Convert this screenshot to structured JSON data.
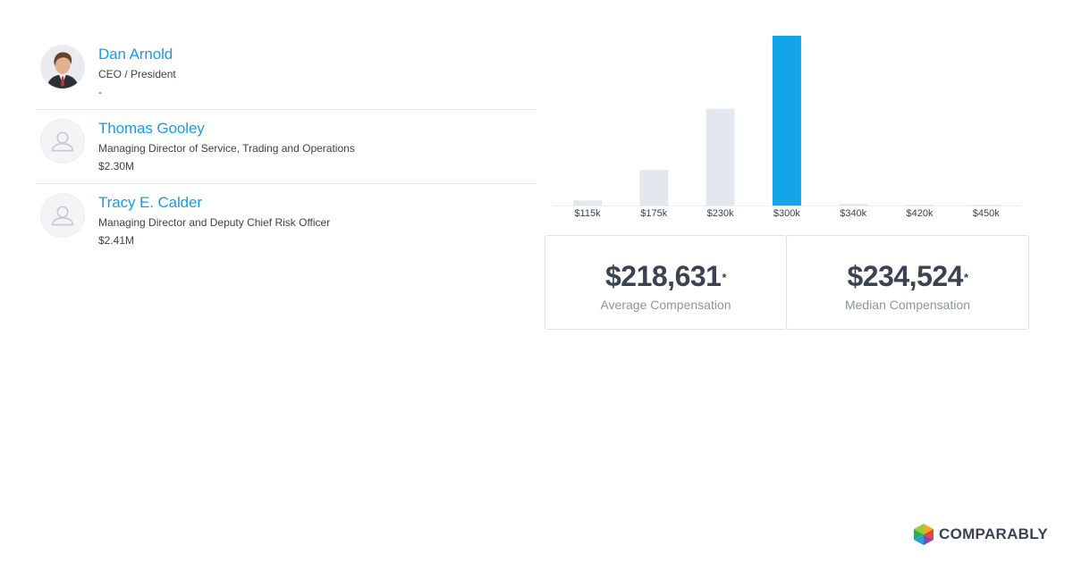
{
  "executives": [
    {
      "name": "Dan Arnold",
      "title": "CEO / President",
      "pay": "-",
      "has_photo": true
    },
    {
      "name": "Thomas Gooley",
      "title": "Managing Director of Service, Trading and Operations",
      "pay": "$2.30M",
      "has_photo": false
    },
    {
      "name": "Tracy E. Calder",
      "title": "Managing Director and Deputy Chief Risk Officer",
      "pay": "$2.41M",
      "has_photo": false
    }
  ],
  "chart_data": {
    "type": "bar",
    "categories": [
      "$115k",
      "$175k",
      "$230k",
      "$300k",
      "$340k",
      "$420k",
      "$450k"
    ],
    "values": [
      3,
      21,
      57,
      100,
      1,
      0.5,
      0.5
    ],
    "highlight_index": 3,
    "ylim": [
      0,
      100
    ],
    "title": "",
    "xlabel": "",
    "ylabel": "",
    "grid": false,
    "bar_color": "#e3e8ee",
    "highlight_color": "#13a3e8"
  },
  "stats": {
    "average": {
      "value": "$218,631",
      "marker": "*",
      "label": "Average Compensation"
    },
    "median": {
      "value": "$234,524",
      "marker": "*",
      "label": "Median Compensation"
    }
  },
  "brand": {
    "name": "COMPARABLY",
    "icon": "comparably-logo-icon"
  },
  "colors": {
    "link": "#1a9be8",
    "text": "#3b4250",
    "muted": "#8c95a1",
    "border": "#dfe3e8"
  }
}
